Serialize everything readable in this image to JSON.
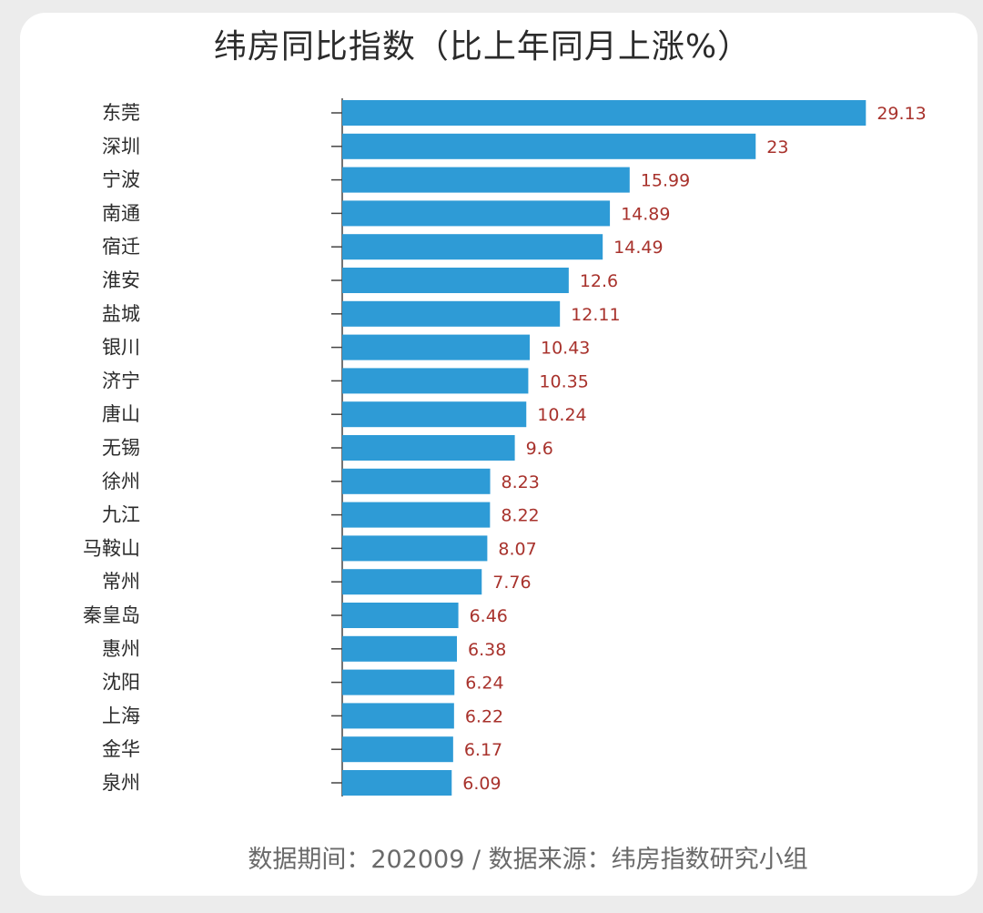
{
  "title": "纬房同比指数（比上年同月上涨%）",
  "footer": "数据期间：202009 / 数据来源：纬房指数研究小组",
  "colors": {
    "bar": "#2e9bd6",
    "value_label": "#a8322c",
    "axis": "#444444"
  },
  "chart_data": {
    "type": "bar",
    "orientation": "horizontal",
    "title": "纬房同比指数（比上年同月上涨%）",
    "xlabel": "",
    "ylabel": "",
    "grid": false,
    "categories": [
      "东莞",
      "深圳",
      "宁波",
      "南通",
      "宿迁",
      "淮安",
      "盐城",
      "银川",
      "济宁",
      "唐山",
      "无锡",
      "徐州",
      "九江",
      "马鞍山",
      "常州",
      "秦皇岛",
      "惠州",
      "沈阳",
      "上海",
      "金华",
      "泉州"
    ],
    "values": [
      29.13,
      23,
      15.99,
      14.89,
      14.49,
      12.6,
      12.11,
      10.43,
      10.35,
      10.24,
      9.6,
      8.23,
      8.22,
      8.07,
      7.76,
      6.46,
      6.38,
      6.24,
      6.22,
      6.17,
      6.09
    ],
    "value_labels": [
      "29.13",
      "23",
      "15.99",
      "14.89",
      "14.49",
      "12.6",
      "12.11",
      "10.43",
      "10.35",
      "10.24",
      "9.6",
      "8.23",
      "8.22",
      "8.07",
      "7.76",
      "6.46",
      "6.38",
      "6.24",
      "6.22",
      "6.17",
      "6.09"
    ]
  }
}
